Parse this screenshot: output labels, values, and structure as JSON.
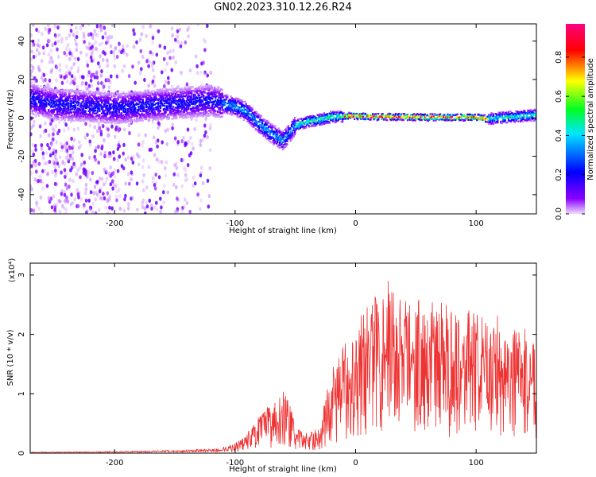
{
  "title": "GN02.2023.310.12.26.R24",
  "chart_data": [
    {
      "type": "heatmap",
      "title": "GN02.2023.310.12.26.R24",
      "xlabel": "Height of straight line (km)",
      "ylabel": "Frequency (Hz)",
      "xlim": [
        -270,
        150
      ],
      "ylim": [
        -50,
        49
      ],
      "xticks": [
        -200,
        -100,
        0,
        100
      ],
      "yticks": [
        -40,
        -20,
        0,
        20,
        40
      ],
      "colorbar": {
        "label": "Normalized spectral amplitude",
        "range": [
          0.0,
          0.97
        ],
        "ticks": [
          0.0,
          0.2,
          0.4,
          0.6,
          0.8
        ],
        "colors": [
          "#eedcff",
          "#8a00ff",
          "#0000ff",
          "#00e5ff",
          "#00ff22",
          "#ffff00",
          "#ff0000",
          "#ff007f"
        ]
      },
      "ridge": {
        "x": [
          -270,
          -250,
          -220,
          -200,
          -180,
          -160,
          -140,
          -120,
          -100,
          -90,
          -80,
          -70,
          -60,
          -55,
          -50,
          -45,
          -40,
          -30,
          -20,
          -10,
          0,
          20,
          40,
          60,
          80,
          100,
          110,
          120,
          130,
          140,
          150
        ],
        "y": [
          10,
          7,
          6,
          5,
          6,
          7,
          8,
          9,
          6,
          3,
          -3,
          -8,
          -12,
          -8,
          -4,
          -3,
          -2,
          -1,
          0.5,
          0.8,
          1,
          0.5,
          0.5,
          0.3,
          0.3,
          0.3,
          -0.5,
          0,
          0.5,
          1,
          1.5
        ]
      }
    },
    {
      "type": "line",
      "xlabel": "Height of straight line (km)",
      "ylabel": "SNR (10 * v/v)",
      "yscale_label": "(x10⁴)",
      "xlim": [
        -270,
        150
      ],
      "ylim": [
        0,
        3.2
      ],
      "xticks": [
        -200,
        -100,
        0,
        100
      ],
      "yticks": [
        0,
        1,
        2,
        3
      ],
      "series": [
        {
          "color": "#ee3333",
          "envelope_x": [
            -270,
            -200,
            -150,
            -110,
            -100,
            -90,
            -80,
            -70,
            -60,
            -55,
            -50,
            -40,
            -30,
            -25,
            -20,
            -10,
            0,
            10,
            20,
            25,
            30,
            40,
            50,
            60,
            80,
            100,
            110,
            120,
            130,
            140,
            150
          ],
          "envelope_y": [
            0.02,
            0.03,
            0.05,
            0.08,
            0.12,
            0.25,
            0.45,
            0.6,
            0.75,
            0.65,
            0.3,
            0.25,
            0.3,
            0.7,
            1.0,
            1.3,
            1.6,
            1.8,
            2.0,
            2.3,
            2.0,
            1.9,
            1.9,
            1.85,
            1.8,
            1.7,
            1.6,
            1.7,
            1.5,
            1.5,
            1.4
          ]
        }
      ]
    }
  ]
}
